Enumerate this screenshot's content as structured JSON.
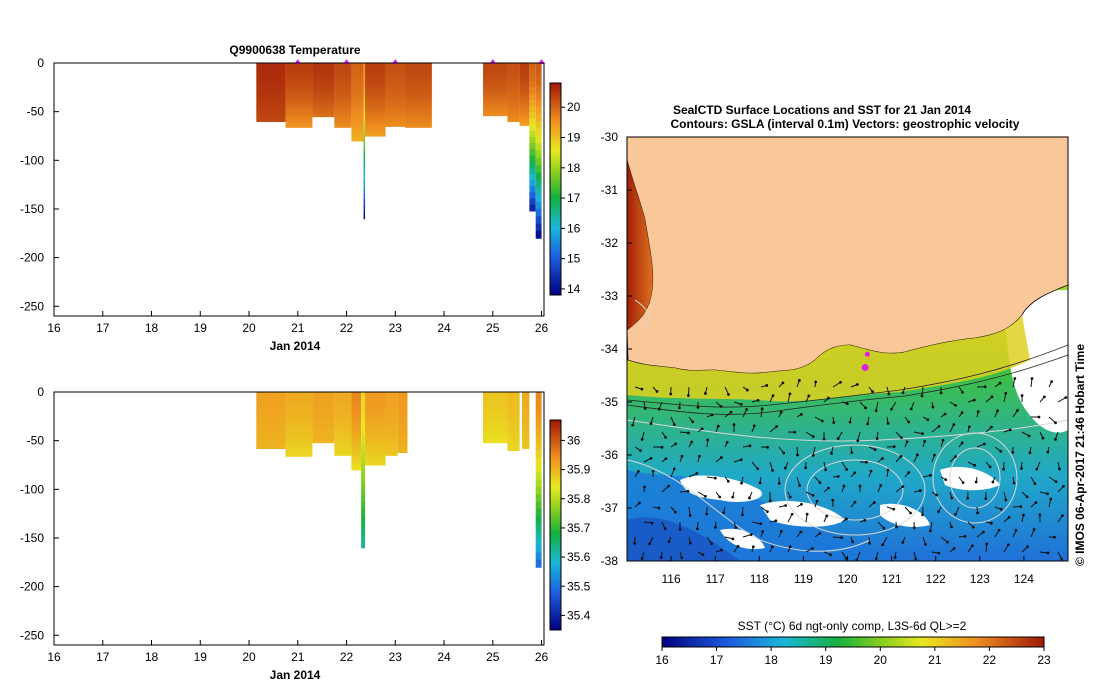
{
  "colors": {
    "land": "#FAC898",
    "background": "#ffffff",
    "marker": "#E020E0",
    "contour": "#D8D8D8"
  },
  "chart_data": [
    {
      "type": "heatmap",
      "title": "Q9900638  Temperature",
      "xlabel": "Jan 2014",
      "ylabel": "",
      "x_ticks": [
        16,
        17,
        18,
        19,
        20,
        21,
        22,
        23,
        24,
        25,
        26
      ],
      "y_ticks": [
        0,
        -50,
        -100,
        -150,
        -200,
        -250
      ],
      "xlim": [
        16,
        26.05
      ],
      "ylim": [
        -260,
        0
      ],
      "colorbar": {
        "ticks": [
          14,
          15,
          16,
          17,
          18,
          19,
          20
        ],
        "range": [
          13.8,
          20.8
        ]
      },
      "profile_markers_day": [
        21.0,
        22.0,
        23.0,
        25.0,
        26.0
      ],
      "profiles": [
        {
          "x0": 20.15,
          "x1": 20.75,
          "depth": 60,
          "surface": 20.6,
          "bottom": 20.3
        },
        {
          "x0": 20.75,
          "x1": 21.3,
          "depth": 66,
          "surface": 20.4,
          "bottom": 19.5
        },
        {
          "x0": 21.3,
          "x1": 21.75,
          "depth": 55,
          "surface": 20.5,
          "bottom": 19.9
        },
        {
          "x0": 21.75,
          "x1": 22.1,
          "depth": 66,
          "surface": 20.3,
          "bottom": 19.6
        },
        {
          "x0": 22.1,
          "x1": 22.35,
          "depth": 80,
          "surface": 20.0,
          "bottom": 19.2
        },
        {
          "x0": 22.35,
          "x1": 22.38,
          "depth": 160,
          "surface": 19.5,
          "bottom": 14.0
        },
        {
          "x0": 22.38,
          "x1": 22.8,
          "depth": 75,
          "surface": 20.4,
          "bottom": 19.4
        },
        {
          "x0": 22.8,
          "x1": 23.2,
          "depth": 65,
          "surface": 20.2,
          "bottom": 19.6
        },
        {
          "x0": 23.2,
          "x1": 23.75,
          "depth": 66,
          "surface": 20.3,
          "bottom": 19.6
        },
        {
          "x0": 24.8,
          "x1": 25.3,
          "depth": 54,
          "surface": 20.3,
          "bottom": 19.6
        },
        {
          "x0": 25.3,
          "x1": 25.55,
          "depth": 60,
          "surface": 20.2,
          "bottom": 19.6
        },
        {
          "x0": 25.55,
          "x1": 25.75,
          "depth": 64,
          "surface": 20.4,
          "bottom": 19.4
        },
        {
          "x0": 25.75,
          "x1": 25.88,
          "depth": 152,
          "surface": 20.0,
          "bottom": 14.3
        },
        {
          "x0": 25.88,
          "x1": 26.0,
          "depth": 180,
          "surface": 20.1,
          "bottom": 14.0
        }
      ]
    },
    {
      "type": "heatmap",
      "title": "",
      "xlabel": "Jan 2014",
      "ylabel": "",
      "x_ticks": [
        16,
        17,
        18,
        19,
        20,
        21,
        22,
        23,
        24,
        25,
        26
      ],
      "y_ticks": [
        0,
        -50,
        -100,
        -150,
        -200,
        -250
      ],
      "xlim": [
        16,
        26.05
      ],
      "ylim": [
        -260,
        0
      ],
      "colorbar": {
        "ticks": [
          35.4,
          35.5,
          35.6,
          35.7,
          35.8,
          35.9,
          36
        ],
        "range": [
          35.35,
          36.07
        ]
      },
      "profiles": [
        {
          "x0": 20.15,
          "x1": 20.75,
          "depth": 58,
          "surface": 35.92,
          "bottom": 35.9
        },
        {
          "x0": 20.75,
          "x1": 21.3,
          "depth": 66,
          "surface": 35.91,
          "bottom": 35.86
        },
        {
          "x0": 21.3,
          "x1": 21.75,
          "depth": 52,
          "surface": 35.92,
          "bottom": 35.9
        },
        {
          "x0": 21.75,
          "x1": 22.1,
          "depth": 65,
          "surface": 35.91,
          "bottom": 35.86
        },
        {
          "x0": 22.1,
          "x1": 22.3,
          "depth": 80,
          "surface": 35.95,
          "bottom": 35.85
        },
        {
          "x0": 22.3,
          "x1": 22.38,
          "depth": 160,
          "surface": 35.86,
          "bottom": 35.62
        },
        {
          "x0": 22.38,
          "x1": 22.8,
          "depth": 75,
          "surface": 35.93,
          "bottom": 35.86
        },
        {
          "x0": 22.8,
          "x1": 23.05,
          "depth": 65,
          "surface": 35.92,
          "bottom": 35.88
        },
        {
          "x0": 23.05,
          "x1": 23.25,
          "depth": 62,
          "surface": 35.93,
          "bottom": 35.9
        },
        {
          "x0": 24.8,
          "x1": 25.3,
          "depth": 52,
          "surface": 35.88,
          "bottom": 35.85
        },
        {
          "x0": 25.3,
          "x1": 25.55,
          "depth": 60,
          "surface": 35.89,
          "bottom": 35.86
        },
        {
          "x0": 25.6,
          "x1": 25.75,
          "depth": 58,
          "surface": 35.91,
          "bottom": 35.88
        },
        {
          "x0": 25.88,
          "x1": 26.0,
          "depth": 180,
          "surface": 35.95,
          "bottom": 35.5
        }
      ]
    },
    {
      "type": "heatmap",
      "title": "SealCTD Surface Locations and SST for 21 Jan 2014",
      "subtitle": "Contours: GSLA (interval 0.1m) Vectors: geostrophic velocity",
      "xlabel": "",
      "ylabel": "",
      "x_ticks": [
        116,
        117,
        118,
        119,
        120,
        121,
        122,
        123,
        124
      ],
      "y_ticks": [
        -30,
        -31,
        -32,
        -33,
        -34,
        -35,
        -36,
        -37,
        -38
      ],
      "xlim": [
        115.0,
        125.0
      ],
      "ylim": [
        -38,
        -30
      ],
      "colorbar": {
        "label": "SST (°C) 6d ngt-only comp, L3S-6d QL>=2",
        "ticks": [
          16,
          17,
          18,
          19,
          20,
          21,
          22,
          23
        ],
        "range": [
          16,
          23
        ]
      },
      "seal_locations": [
        {
          "lon": 120.45,
          "lat": -34.1
        },
        {
          "lon": 120.4,
          "lat": -34.35
        }
      ],
      "credit": "© IMOS 06-Apr-2017 21:46 Hobart Time"
    }
  ]
}
